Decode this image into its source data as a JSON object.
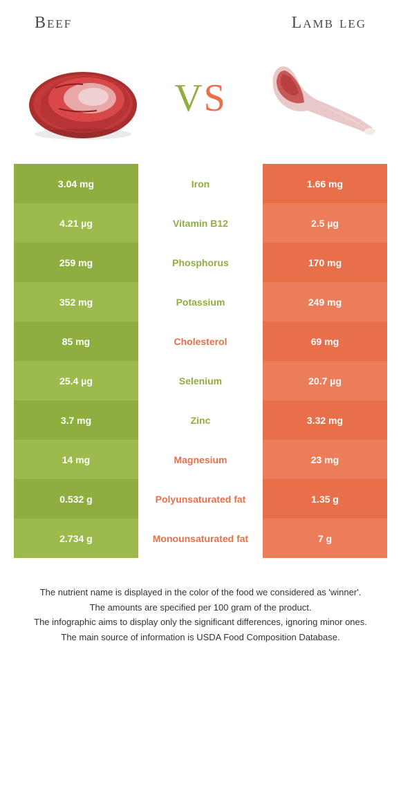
{
  "colors": {
    "beef": "#8fae3f",
    "beef_alt": "#9cbb4c",
    "lamb": "#e86f4a",
    "lamb_alt": "#eb7d5b",
    "vs_v": "#8fae3f",
    "vs_s": "#e86f4a"
  },
  "header": {
    "left": "Beef",
    "right": "Lamb leg"
  },
  "vs": {
    "v": "V",
    "s": "S"
  },
  "rows": [
    {
      "nutrient": "Iron",
      "left": "3.04 mg",
      "right": "1.66 mg",
      "winner": "beef"
    },
    {
      "nutrient": "Vitamin B12",
      "left": "4.21 µg",
      "right": "2.5 µg",
      "winner": "beef"
    },
    {
      "nutrient": "Phosphorus",
      "left": "259 mg",
      "right": "170 mg",
      "winner": "beef"
    },
    {
      "nutrient": "Potassium",
      "left": "352 mg",
      "right": "249 mg",
      "winner": "beef"
    },
    {
      "nutrient": "Cholesterol",
      "left": "85 mg",
      "right": "69 mg",
      "winner": "lamb"
    },
    {
      "nutrient": "Selenium",
      "left": "25.4 µg",
      "right": "20.7 µg",
      "winner": "beef"
    },
    {
      "nutrient": "Zinc",
      "left": "3.7 mg",
      "right": "3.32 mg",
      "winner": "beef"
    },
    {
      "nutrient": "Magnesium",
      "left": "14 mg",
      "right": "23 mg",
      "winner": "lamb"
    },
    {
      "nutrient": "Polyunsaturated fat",
      "left": "0.532 g",
      "right": "1.35 g",
      "winner": "lamb"
    },
    {
      "nutrient": "Monounsaturated fat",
      "left": "2.734 g",
      "right": "7 g",
      "winner": "lamb"
    }
  ],
  "footer": {
    "l1": "The nutrient name is displayed in the color of the food we considered as 'winner'.",
    "l2": "The amounts are specified per 100 gram of the product.",
    "l3": "The infographic aims to display only the significant differences, ignoring minor ones.",
    "l4": "The main source of information is USDA Food Composition Database."
  }
}
